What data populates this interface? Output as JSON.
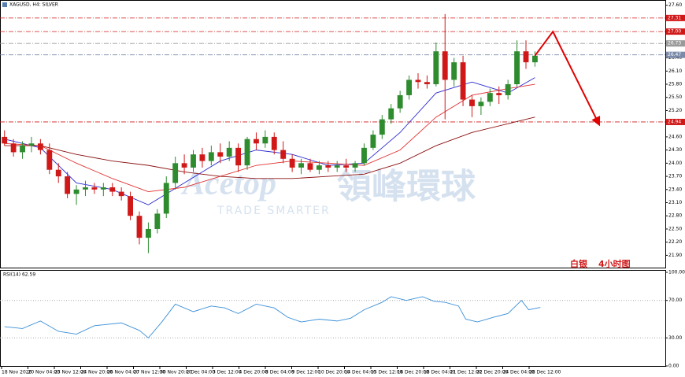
{
  "chart_data": {
    "type": "candlestick",
    "title": "XAGUSD, H4: SILVER",
    "x_labels": [
      "18 Nov 2020",
      "20 Nov 04:00",
      "23 Nov 12:00",
      "24 Nov 20:00",
      "26 Nov 04:00",
      "27 Nov 12:00",
      "30 Nov 20:00",
      "2 Dec 04:00",
      "3 Dec 12:00",
      "4 Dec 20:00",
      "8 Dec 04:00",
      "9 Dec 12:00",
      "10 Dec 20:00",
      "14 Dec 04:00",
      "15 Dec 12:00",
      "16 Dec 20:00",
      "18 Dec 04:00",
      "21 Dec 12:00",
      "22 Dec 20:00",
      "24 Dec 04:00",
      "28 Dec 12:00"
    ],
    "xlim": [
      -0.5,
      73.5
    ],
    "ylim": [
      21.62,
      27.72
    ],
    "yticks": [
      {
        "value": 27.6,
        "label": "27.60"
      },
      {
        "value": 27.3,
        "label": "27.30"
      },
      {
        "value": 27.0,
        "label": "27.00"
      },
      {
        "value": 26.7,
        "label": "26.70"
      },
      {
        "value": 26.4,
        "label": "26.40"
      },
      {
        "value": 26.1,
        "label": "26.10"
      },
      {
        "value": 25.8,
        "label": "25.80"
      },
      {
        "value": 25.5,
        "label": "25.50"
      },
      {
        "value": 25.2,
        "label": "25.20"
      },
      {
        "value": 24.9,
        "label": "24.90"
      },
      {
        "value": 24.6,
        "label": "24.60"
      },
      {
        "value": 24.3,
        "label": "24.30"
      },
      {
        "value": 24.0,
        "label": "24.00"
      },
      {
        "value": 23.7,
        "label": "23.70"
      },
      {
        "value": 23.4,
        "label": "23.40"
      },
      {
        "value": 23.1,
        "label": "23.10"
      },
      {
        "value": 22.8,
        "label": "22.80"
      },
      {
        "value": 22.5,
        "label": "22.50"
      },
      {
        "value": 22.2,
        "label": "22.20"
      },
      {
        "value": 21.9,
        "label": "21.90"
      }
    ],
    "up_color": "#2e8b2e",
    "down_color": "#d01818",
    "open": [
      24.6,
      24.45,
      24.25,
      24.4,
      24.45,
      24.3,
      23.85,
      23.7,
      23.3,
      23.4,
      23.45,
      23.4,
      23.45,
      23.35,
      23.25,
      22.8,
      22.3,
      22.5,
      22.85,
      23.55,
      24.0,
      23.9,
      24.2,
      24.05,
      24.25,
      24.15,
      24.35,
      23.95,
      24.55,
      24.45,
      24.6,
      24.3,
      24.1,
      23.9,
      24.0,
      23.85,
      23.95,
      23.9,
      23.95,
      23.9,
      24.0,
      24.35,
      24.65,
      25.0,
      25.25,
      25.55,
      25.9,
      25.85,
      25.8,
      26.55,
      25.9,
      26.3,
      25.45,
      25.3,
      25.4,
      25.6,
      25.55,
      25.8,
      26.55,
      26.3
    ],
    "high": [
      24.75,
      24.55,
      24.5,
      24.6,
      24.55,
      24.45,
      24.0,
      23.8,
      23.5,
      23.6,
      23.55,
      23.55,
      23.55,
      23.45,
      23.35,
      22.9,
      22.65,
      22.95,
      23.7,
      24.15,
      24.2,
      24.3,
      24.35,
      24.4,
      24.45,
      24.5,
      24.45,
      24.6,
      24.7,
      24.75,
      24.7,
      24.5,
      24.2,
      24.1,
      24.1,
      24.05,
      24.05,
      24.05,
      24.1,
      24.05,
      24.45,
      24.75,
      25.1,
      25.35,
      25.65,
      26.0,
      26.05,
      26.0,
      26.75,
      27.4,
      26.4,
      26.45,
      25.55,
      25.5,
      25.7,
      25.75,
      25.9,
      26.8,
      26.8,
      26.55
    ],
    "low": [
      24.4,
      24.15,
      24.1,
      24.25,
      24.2,
      23.75,
      23.55,
      23.2,
      23.05,
      23.25,
      23.3,
      23.25,
      23.25,
      23.15,
      22.7,
      22.15,
      21.95,
      22.4,
      22.75,
      23.4,
      23.75,
      23.8,
      23.9,
      23.95,
      24.0,
      24.05,
      23.8,
      23.85,
      24.3,
      24.35,
      24.2,
      24.0,
      23.8,
      23.75,
      23.8,
      23.75,
      23.8,
      23.8,
      23.8,
      23.8,
      23.95,
      24.3,
      24.55,
      24.9,
      25.15,
      25.45,
      25.7,
      25.7,
      25.75,
      25.0,
      25.75,
      25.3,
      25.05,
      25.1,
      25.3,
      25.35,
      25.45,
      25.75,
      26.15,
      26.2
    ],
    "close": [
      24.45,
      24.25,
      24.4,
      24.45,
      24.3,
      23.85,
      23.7,
      23.3,
      23.4,
      23.45,
      23.4,
      23.45,
      23.35,
      23.25,
      22.8,
      22.3,
      22.5,
      22.85,
      23.55,
      24.0,
      23.9,
      24.2,
      24.05,
      24.25,
      24.15,
      24.35,
      23.95,
      24.55,
      24.45,
      24.6,
      24.3,
      24.1,
      23.9,
      24.0,
      23.85,
      23.95,
      23.9,
      23.95,
      23.9,
      24.0,
      24.35,
      24.65,
      25.0,
      25.25,
      25.55,
      25.9,
      25.85,
      25.8,
      26.55,
      25.9,
      26.3,
      25.45,
      25.3,
      25.4,
      25.6,
      25.55,
      25.8,
      26.55,
      26.3,
      26.45
    ],
    "moving_averages": [
      {
        "color": "#2a2ad0",
        "x": [
          0,
          4,
          8,
          12,
          16,
          20,
          24,
          28,
          32,
          36,
          40,
          44,
          48,
          52,
          56,
          59
        ],
        "values": [
          24.55,
          24.35,
          23.55,
          23.4,
          23.05,
          23.55,
          24.05,
          24.3,
          24.2,
          23.95,
          24.0,
          24.7,
          25.6,
          25.85,
          25.6,
          25.95
        ]
      },
      {
        "color": "#e03030",
        "x": [
          0,
          4,
          8,
          12,
          16,
          20,
          24,
          28,
          32,
          36,
          40,
          44,
          48,
          52,
          56,
          59
        ],
        "values": [
          24.45,
          24.4,
          24.0,
          23.65,
          23.35,
          23.45,
          23.7,
          23.95,
          24.05,
          24.0,
          23.95,
          24.3,
          25.05,
          25.55,
          25.7,
          25.8
        ]
      },
      {
        "color": "#8b1010",
        "x": [
          0,
          4,
          8,
          12,
          16,
          20,
          24,
          28,
          32,
          36,
          40,
          44,
          48,
          52,
          56,
          59
        ],
        "values": [
          24.4,
          24.4,
          24.2,
          24.05,
          23.95,
          23.8,
          23.7,
          23.65,
          23.65,
          23.7,
          23.75,
          24.0,
          24.4,
          24.7,
          24.9,
          25.05
        ]
      }
    ],
    "levels": [
      {
        "value": 27.31,
        "label": "27.31",
        "color": "#d01818"
      },
      {
        "value": 27.0,
        "label": "27.00",
        "color": "#d01818"
      },
      {
        "value": 26.73,
        "label": "26.73",
        "color": "#9a9a9a"
      },
      {
        "value": 26.47,
        "label": "26.47",
        "color": "#7a8aa8"
      },
      {
        "value": 24.94,
        "label": "24.94",
        "color": "#d01818"
      }
    ],
    "forecast": {
      "color": "#e00000",
      "x": [
        59,
        61,
        66
      ],
      "values": [
        26.45,
        27.0,
        24.94
      ]
    },
    "annotation": [
      "白银",
      "4小时图"
    ],
    "watermark": {
      "brand": "Acetop",
      "name": "領峰環球",
      "tagline": "TRADE SMARTER"
    },
    "rsi": {
      "title": "RSI(14) 62.59",
      "color": "#3a8fd8",
      "ylim": [
        0,
        100
      ],
      "yticks": [
        {
          "value": 100,
          "label": "100.00"
        },
        {
          "value": 70,
          "label": "70.00"
        },
        {
          "value": 30,
          "label": "30.00"
        },
        {
          "value": 0,
          "label": "0.00"
        }
      ],
      "x": [
        0,
        2,
        4,
        6,
        8,
        10,
        11,
        13,
        15,
        16,
        17.5,
        19,
        21,
        23,
        24.5,
        26,
        28,
        30,
        31.5,
        33,
        35,
        37,
        38.5,
        40,
        42,
        43,
        44.7,
        46.5,
        47.8,
        49,
        50.5,
        51.3,
        52.6,
        54.4,
        56,
        57.5,
        58.3,
        59.6
      ],
      "values": [
        42,
        40,
        48,
        37,
        34,
        43,
        44,
        46,
        38,
        30,
        47,
        66,
        58,
        64,
        62,
        56,
        66,
        62,
        52,
        47,
        50,
        48,
        51,
        60,
        68,
        74,
        70,
        74,
        69,
        68,
        64,
        50,
        47,
        52,
        56,
        70,
        60,
        62.59
      ]
    }
  }
}
